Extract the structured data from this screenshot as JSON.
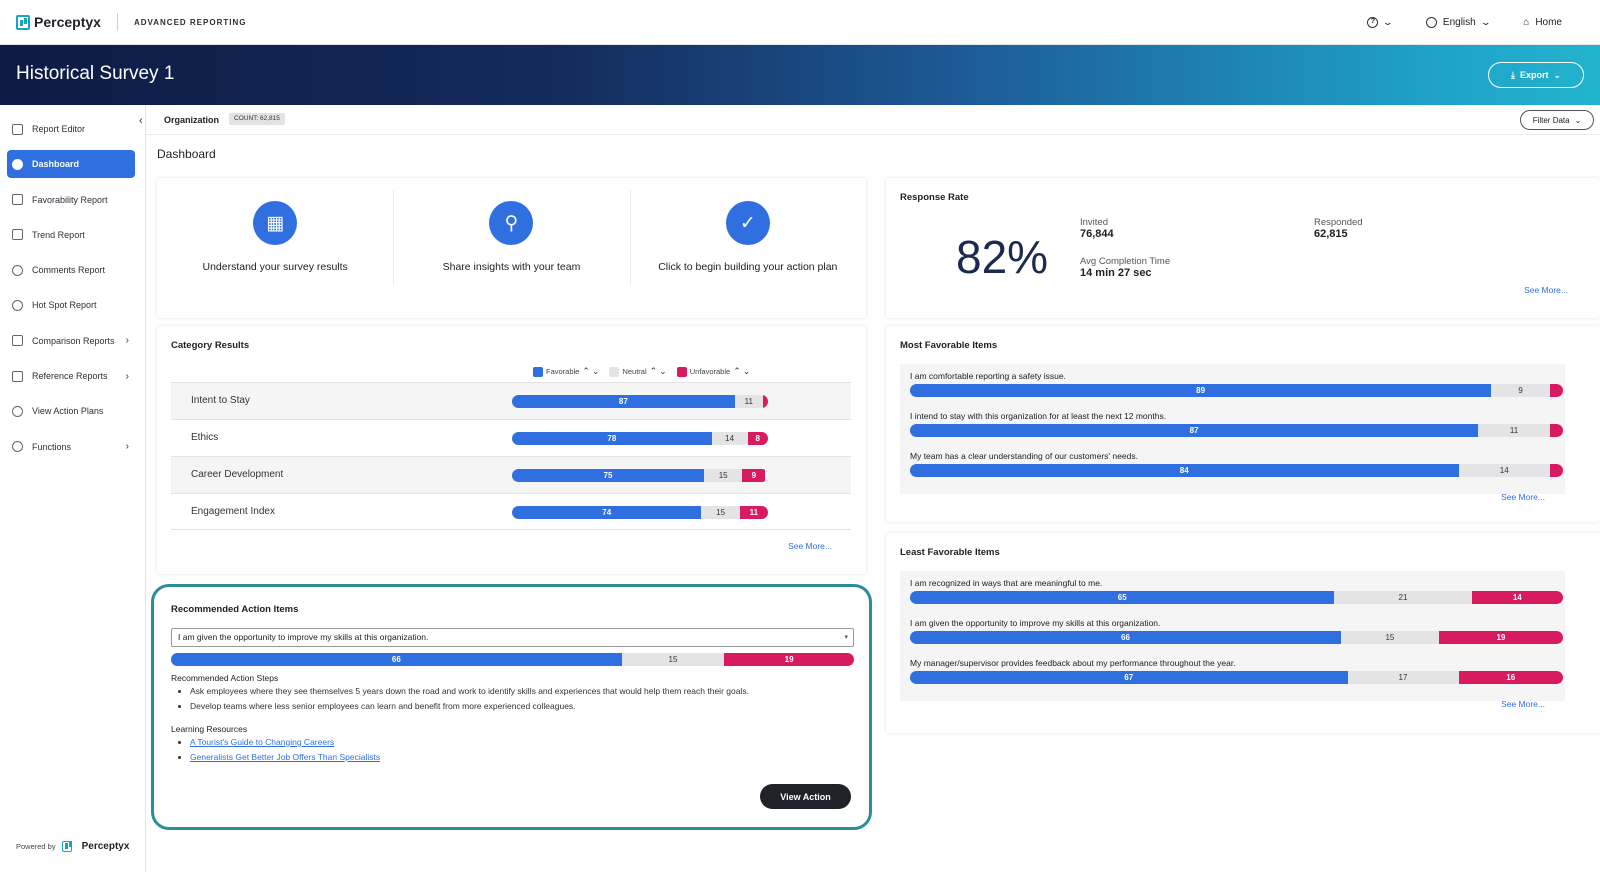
{
  "topbar": {
    "brand": "Perceptyx",
    "app_name": "ADVANCED REPORTING",
    "help_icon": "?",
    "language": "English",
    "home": "Home"
  },
  "banner": {
    "title": "Historical Survey 1",
    "export_label": "Export"
  },
  "sidebar": {
    "items": [
      {
        "label": "Report Editor",
        "icon": "edit-icon"
      },
      {
        "label": "Dashboard",
        "icon": "dashboard-icon",
        "active": true
      },
      {
        "label": "Favorability Report",
        "icon": "thumbs-up-icon"
      },
      {
        "label": "Trend Report",
        "icon": "trend-icon"
      },
      {
        "label": "Comments Report",
        "icon": "comments-icon"
      },
      {
        "label": "Hot Spot Report",
        "icon": "target-icon"
      },
      {
        "label": "Comparison Reports",
        "icon": "scale-icon",
        "submenu": true
      },
      {
        "label": "Reference Reports",
        "icon": "list-icon",
        "submenu": true
      },
      {
        "label": "View Action Plans",
        "icon": "check-circle-icon"
      },
      {
        "label": "Functions",
        "icon": "gear-icon",
        "submenu": true
      }
    ],
    "powered_by": "Powered by",
    "powered_brand": "Perceptyx"
  },
  "orgbar": {
    "label": "Organization",
    "count": "COUNT: 62,815",
    "filter_label": "Filter Data"
  },
  "page_title": "Dashboard",
  "quick_actions": [
    {
      "label": "Understand your survey results",
      "icon": "people-icon"
    },
    {
      "label": "Share insights with your team",
      "icon": "map-pin-icon"
    },
    {
      "label": "Click to begin building your action plan",
      "icon": "clipboard-check-icon"
    }
  ],
  "response_rate": {
    "title": "Response Rate",
    "percent": "82%",
    "invited_label": "Invited",
    "invited_value": "76,844",
    "responded_label": "Responded",
    "responded_value": "62,815",
    "completion_label": "Avg Completion Time",
    "completion_value": "14 min 27 sec",
    "see_more": "See More..."
  },
  "category_results": {
    "title": "Category Results",
    "legend": {
      "favorable": "Favorable",
      "neutral": "Neutral",
      "unfavorable": "Unfavorable"
    },
    "rows": [
      {
        "label": "Intent to Stay",
        "fav": 87,
        "neu": 11,
        "unf": 2,
        "unf_label": ""
      },
      {
        "label": "Ethics",
        "fav": 78,
        "neu": 14,
        "unf": 8,
        "unf_label": "8"
      },
      {
        "label": "Career Development",
        "fav": 75,
        "neu": 15,
        "unf": 9,
        "unf_label": "9"
      },
      {
        "label": "Engagement Index",
        "fav": 74,
        "neu": 15,
        "unf": 11,
        "unf_label": "11"
      }
    ],
    "see_more": "See More..."
  },
  "most_favorable": {
    "title": "Most Favorable Items",
    "items": [
      {
        "text": "I am comfortable reporting a safety issue.",
        "fav": 89,
        "neu": 9,
        "unf": 2,
        "unf_label": ""
      },
      {
        "text": "I intend to stay with this organization for at least the next 12 months.",
        "fav": 87,
        "neu": 11,
        "unf": 2,
        "unf_label": ""
      },
      {
        "text": "My team has a clear understanding of our customers' needs.",
        "fav": 84,
        "neu": 14,
        "unf": 2,
        "unf_label": ""
      }
    ],
    "see_more": "See More..."
  },
  "least_favorable": {
    "title": "Least Favorable Items",
    "items": [
      {
        "text": "I am recognized in ways that are meaningful to me.",
        "fav": 65,
        "neu": 21,
        "unf": 14,
        "unf_label": "14"
      },
      {
        "text": "I am given the opportunity to improve my skills at this organization.",
        "fav": 66,
        "neu": 15,
        "unf": 19,
        "unf_label": "19"
      },
      {
        "text": "My manager/supervisor provides feedback about my performance throughout the year.",
        "fav": 67,
        "neu": 17,
        "unf": 16,
        "unf_label": "16"
      }
    ],
    "see_more": "See More..."
  },
  "recommended": {
    "title": "Recommended Action Items",
    "selected_item": "I am given the opportunity to improve my skills at this organization.",
    "bar": {
      "fav": 66,
      "neu": 15,
      "unf": 19
    },
    "steps_title": "Recommended Action Steps",
    "steps": [
      "Ask employees where they see themselves 5 years down the road and work to identify skills and experiences that would help them reach their goals.",
      "Develop teams where less senior employees can learn and benefit from more experienced colleagues."
    ],
    "resources_title": "Learning Resources",
    "resources": [
      "A Tourist's Guide to Changing Careers",
      "Generalists Get Better Job Offers Than Specialists"
    ],
    "view_action": "View Action"
  },
  "colors": {
    "favorable": "#2f6fe0",
    "neutral": "#e4e4e6",
    "unfavorable": "#d81b60",
    "highlight_border": "#2a8d98"
  }
}
